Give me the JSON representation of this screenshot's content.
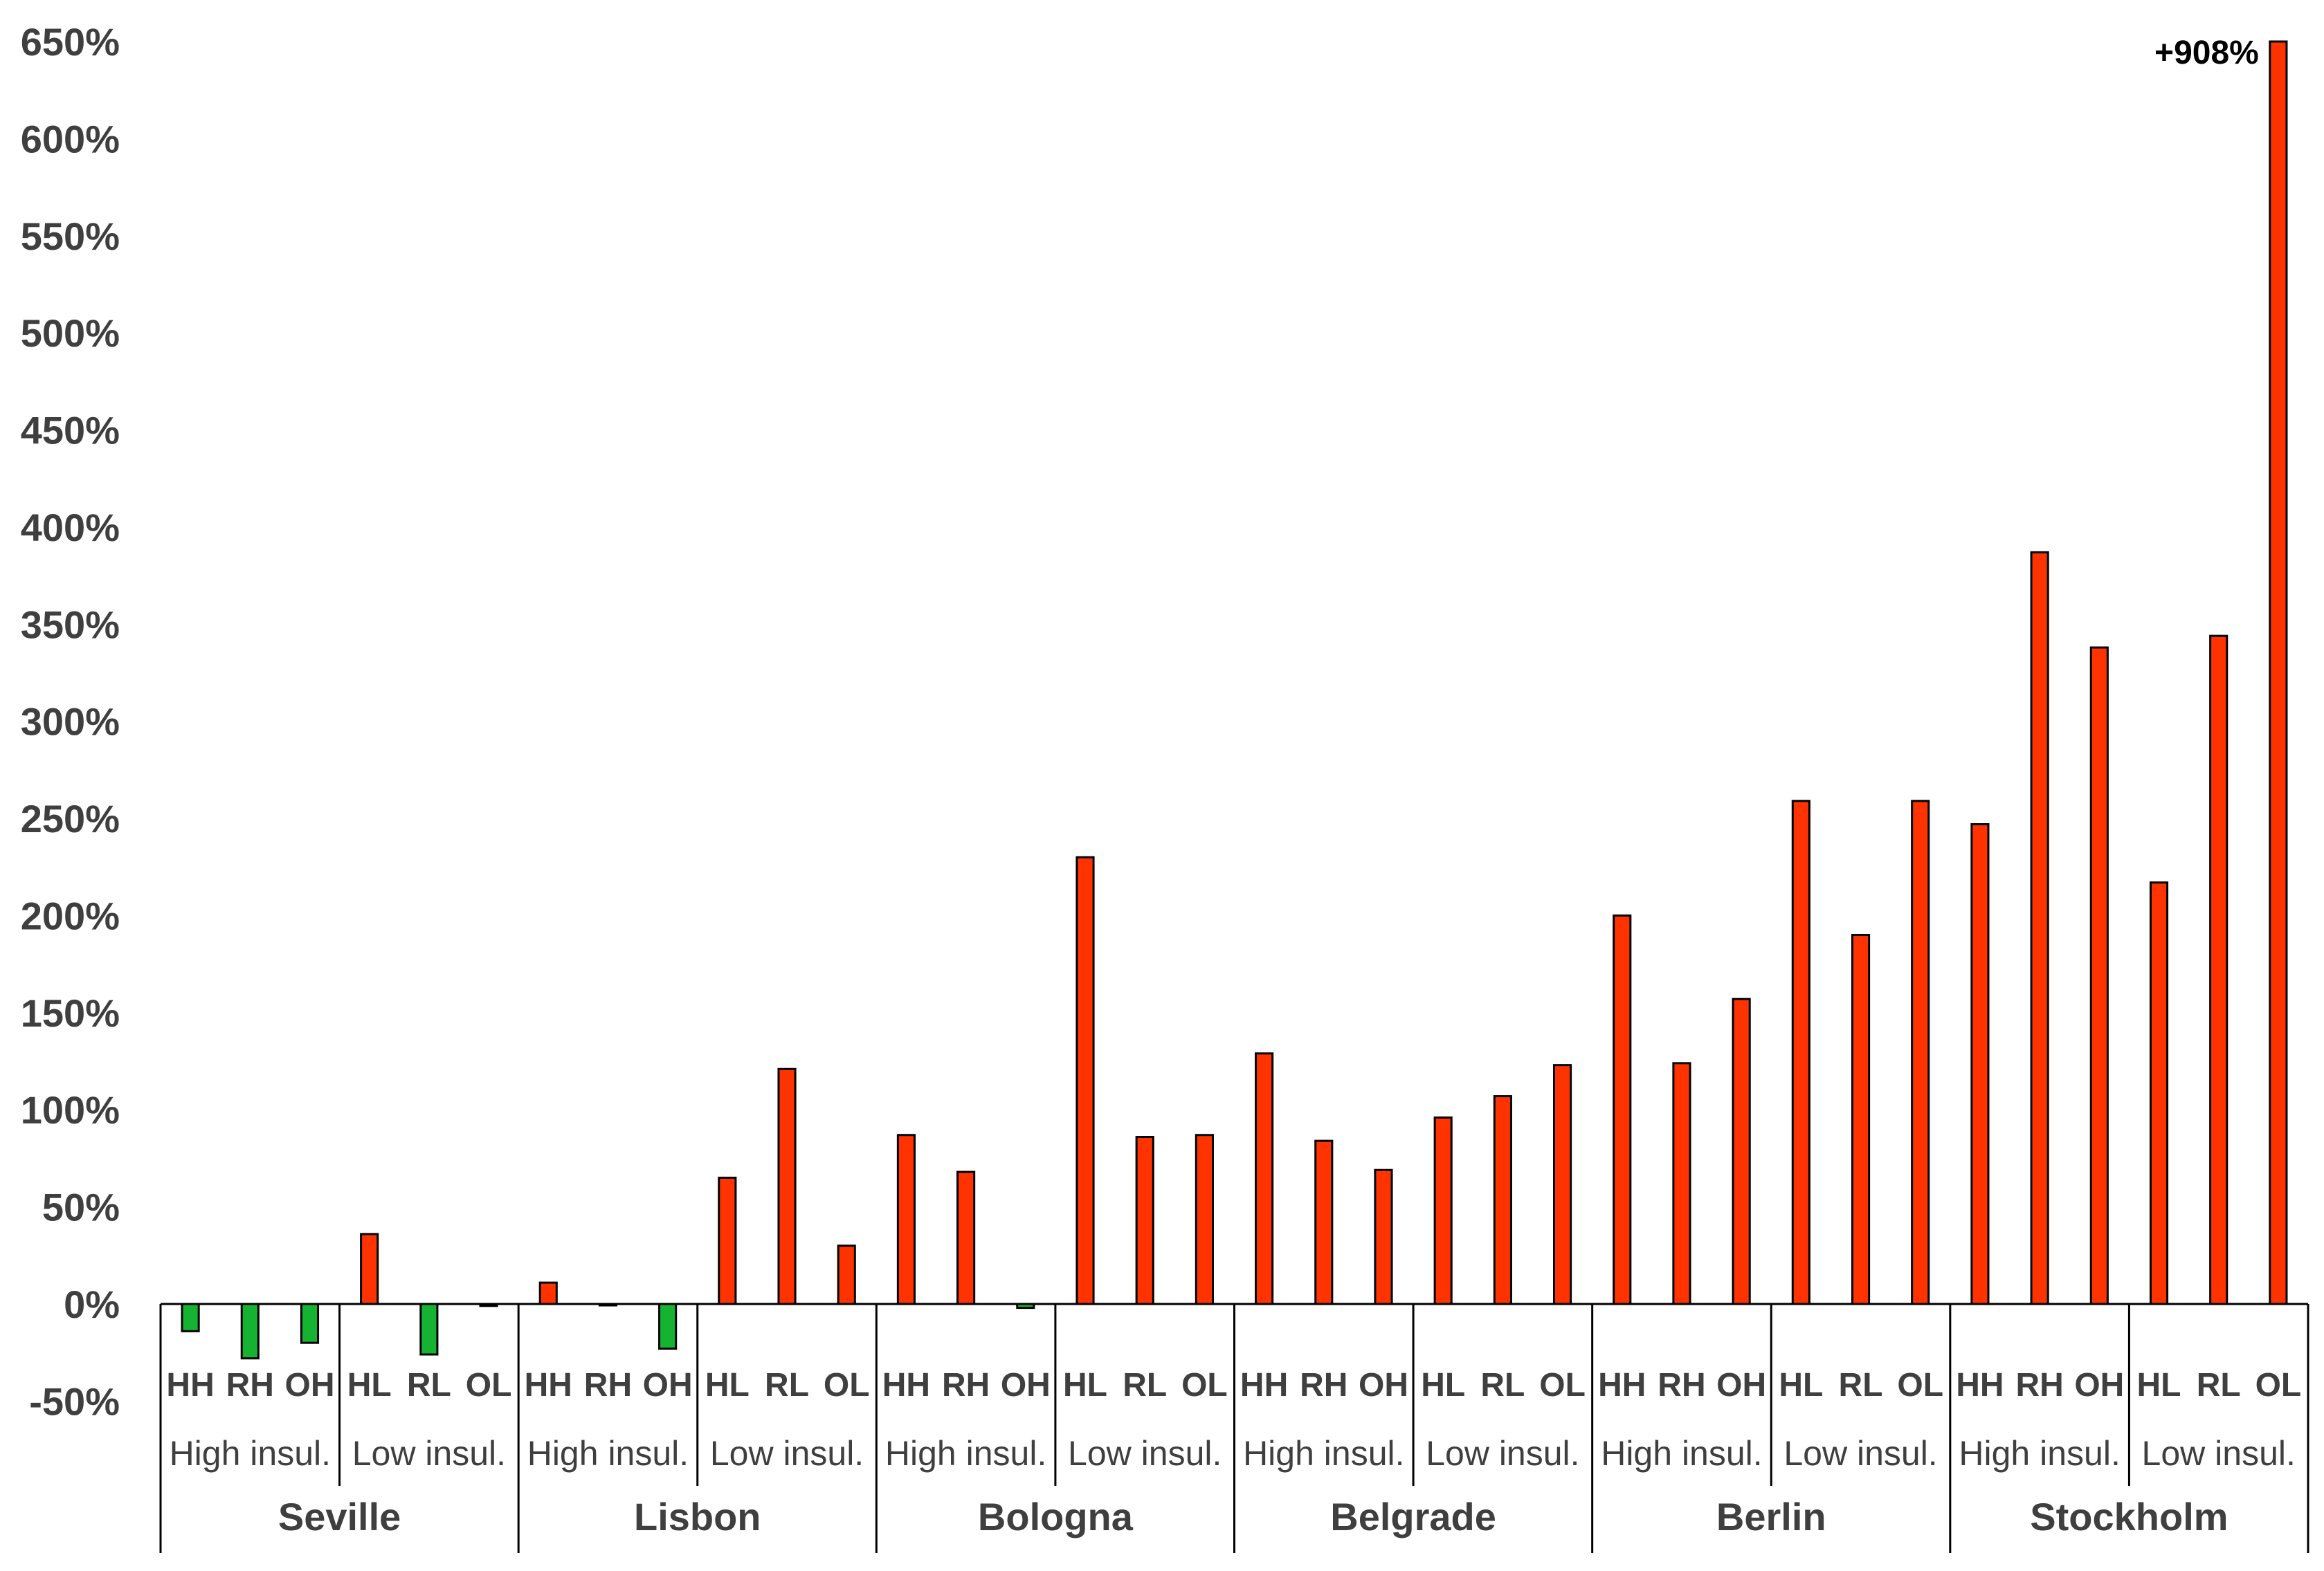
{
  "chart_data": {
    "type": "bar",
    "y_axis": {
      "min": -50,
      "max": 650,
      "step": 50,
      "tick_labels": [
        "-50%",
        "0%",
        "50%",
        "100%",
        "150%",
        "200%",
        "250%",
        "300%",
        "350%",
        "400%",
        "450%",
        "500%",
        "550%",
        "600%",
        "650%"
      ]
    },
    "grid": false,
    "legend": "none",
    "annotations": [
      {
        "text": "+908%",
        "city": "Stockholm",
        "category": "OL"
      }
    ],
    "colors": {
      "positive": "#ff3300",
      "negative": "#16b333",
      "stroke": "#000000",
      "text": "#3f3f3f"
    },
    "cities": [
      {
        "name": "Seville",
        "groups": [
          {
            "label": "High insul.",
            "categories": [
              "HH",
              "RH",
              "OH"
            ],
            "values": [
              -14,
              -28,
              -20
            ]
          },
          {
            "label": "Low insul.",
            "categories": [
              "HL",
              "RL",
              "OL"
            ],
            "values": [
              36,
              -26,
              -1
            ]
          }
        ]
      },
      {
        "name": "Lisbon",
        "groups": [
          {
            "label": "High insul.",
            "categories": [
              "HH",
              "RH",
              "OH"
            ],
            "values": [
              11,
              0,
              -23
            ]
          },
          {
            "label": "Low insul.",
            "categories": [
              "HL",
              "RL",
              "OL"
            ],
            "values": [
              65,
              121,
              30
            ]
          }
        ]
      },
      {
        "name": "Bologna",
        "groups": [
          {
            "label": "High insul.",
            "categories": [
              "HH",
              "RH",
              "OH"
            ],
            "values": [
              87,
              68,
              -2
            ]
          },
          {
            "label": "Low insul.",
            "categories": [
              "HL",
              "RL",
              "OL"
            ],
            "values": [
              230,
              86,
              87
            ]
          }
        ]
      },
      {
        "name": "Belgrade",
        "groups": [
          {
            "label": "High insul.",
            "categories": [
              "HH",
              "RH",
              "OH"
            ],
            "values": [
              129,
              84,
              69
            ]
          },
          {
            "label": "Low insul.",
            "categories": [
              "HL",
              "RL",
              "OL"
            ],
            "values": [
              96,
              107,
              123
            ]
          }
        ]
      },
      {
        "name": "Berlin",
        "groups": [
          {
            "label": "High insul.",
            "categories": [
              "HH",
              "RH",
              "OH"
            ],
            "values": [
              200,
              124,
              157
            ]
          },
          {
            "label": "Low insul.",
            "categories": [
              "HL",
              "RL",
              "OL"
            ],
            "values": [
              259,
              190,
              259
            ]
          }
        ]
      },
      {
        "name": "Stockholm",
        "groups": [
          {
            "label": "High insul.",
            "categories": [
              "HH",
              "RH",
              "OH"
            ],
            "values": [
              247,
              387,
              338
            ]
          },
          {
            "label": "Low insul.",
            "categories": [
              "HL",
              "RL",
              "OL"
            ],
            "values": [
              217,
              344,
              908
            ]
          }
        ]
      }
    ]
  }
}
